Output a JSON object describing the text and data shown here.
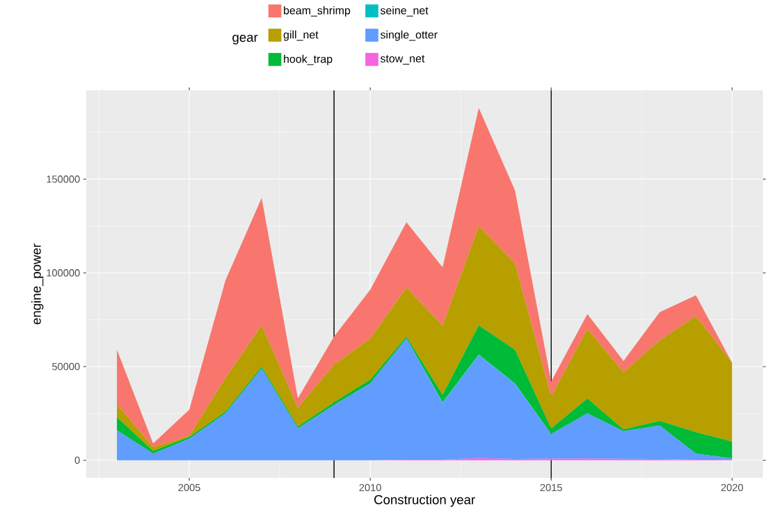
{
  "chart_data": {
    "type": "area",
    "stacked": true,
    "xlabel": "Construction year",
    "ylabel": "engine_power",
    "legend_title": "gear",
    "x": [
      2003,
      2004,
      2005,
      2006,
      2007,
      2008,
      2009,
      2010,
      2011,
      2012,
      2013,
      2014,
      2015,
      2016,
      2017,
      2018,
      2019,
      2020
    ],
    "series": [
      {
        "name": "stow_net",
        "color": "#f564e3",
        "values": [
          0,
          0,
          0,
          0,
          0,
          0,
          0,
          0,
          300,
          300,
          1200,
          600,
          800,
          900,
          700,
          600,
          300,
          200
        ]
      },
      {
        "name": "single_otter",
        "color": "#619cff",
        "values": [
          16000,
          3500,
          11500,
          25000,
          49000,
          17000,
          29500,
          41000,
          64700,
          30200,
          54800,
          40100,
          13200,
          24100,
          14800,
          17900,
          3200,
          800
        ]
      },
      {
        "name": "seine_net",
        "color": "#00bfc4",
        "values": [
          0,
          0,
          0,
          0,
          0,
          0,
          0,
          0,
          0,
          500,
          500,
          300,
          0,
          0,
          0,
          0,
          0,
          0
        ]
      },
      {
        "name": "hook_trap",
        "color": "#00ba38",
        "values": [
          7000,
          1500,
          1000,
          1000,
          1000,
          1000,
          1500,
          2000,
          1000,
          4000,
          15500,
          18000,
          3000,
          8000,
          1000,
          2500,
          11500,
          9000
        ]
      },
      {
        "name": "gill_net",
        "color": "#b79f00",
        "values": [
          7000,
          2000,
          500,
          18000,
          22000,
          10000,
          20000,
          22000,
          26000,
          37000,
          53000,
          46000,
          17000,
          37000,
          30500,
          43000,
          62000,
          42000
        ]
      },
      {
        "name": "beam_shrimp",
        "color": "#f8766d",
        "values": [
          29000,
          2000,
          14000,
          52000,
          68000,
          5000,
          15000,
          26000,
          35000,
          31000,
          63000,
          39000,
          8000,
          8000,
          6000,
          15000,
          11000,
          0
        ]
      }
    ],
    "xlim": [
      2002.15,
      2020.85
    ],
    "xticks": [
      2005,
      2010,
      2015,
      2020
    ],
    "ylim": [
      -9400,
      197400
    ],
    "yticks": [
      0,
      50000,
      100000,
      150000
    ],
    "ref_lines": [
      {
        "axis": "x",
        "value": 2009,
        "color": "#000000"
      },
      {
        "axis": "x",
        "value": 2015,
        "color": "#000000"
      }
    ],
    "grid": true,
    "legend": "top"
  }
}
